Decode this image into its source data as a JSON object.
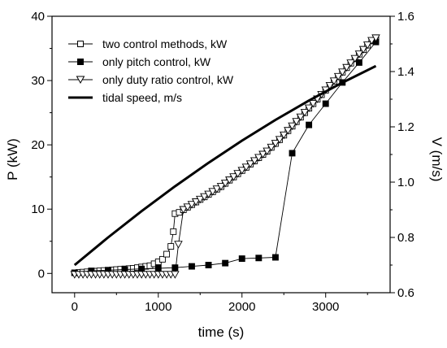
{
  "chart_data": {
    "type": "line",
    "xlabel": "time (s)",
    "ylabel_left": "P (kW)",
    "ylabel_right": "V (m/s)",
    "xlim": [
      -270,
      3770
    ],
    "ylim_left": [
      -3,
      40
    ],
    "ylim_right": [
      0.6,
      1.6
    ],
    "x_ticks": [
      0,
      1000,
      2000,
      3000
    ],
    "y_left_ticks": [
      0,
      10,
      20,
      30,
      40
    ],
    "y_right_ticks": [
      0.6,
      0.8,
      1.0,
      1.2,
      1.4,
      1.6
    ],
    "x_tick_labels": [
      "0",
      "1000",
      "2000",
      "3000"
    ],
    "y_left_tick_labels": [
      "0",
      "10",
      "20",
      "30",
      "40"
    ],
    "y_right_tick_labels": [
      "0.6",
      "0.8",
      "1.0",
      "1.2",
      "1.4",
      "1.6"
    ],
    "legend_position": "top-left",
    "grid": false,
    "series": [
      {
        "name": "two control methods, kW",
        "axis": "left",
        "marker": "open-square",
        "color": "#000000",
        "x": [
          0,
          50,
          100,
          150,
          200,
          250,
          300,
          350,
          400,
          450,
          500,
          550,
          600,
          650,
          700,
          750,
          800,
          850,
          900,
          950,
          1000,
          1050,
          1100,
          1150,
          1180,
          1200,
          1250,
          1300,
          1350,
          1400,
          1450,
          1500,
          1550,
          1600,
          1650,
          1700,
          1750,
          1800,
          1850,
          1900,
          1950,
          2000,
          2050,
          2100,
          2150,
          2200,
          2250,
          2300,
          2350,
          2400,
          2450,
          2500,
          2550,
          2600,
          2650,
          2700,
          2750,
          2800,
          2850,
          2900,
          2950,
          3000,
          3050,
          3100,
          3150,
          3200,
          3250,
          3300,
          3350,
          3400,
          3450,
          3500,
          3550,
          3600
        ],
        "y": [
          0.1,
          0.15,
          0.2,
          0.25,
          0.3,
          0.35,
          0.4,
          0.45,
          0.5,
          0.55,
          0.6,
          0.65,
          0.7,
          0.75,
          0.8,
          0.9,
          1.0,
          1.1,
          1.2,
          1.5,
          1.8,
          2.2,
          3.0,
          4.2,
          6.5,
          9.3,
          9.5,
          9.9,
          10.3,
          10.7,
          11.1,
          11.5,
          11.9,
          12.3,
          12.7,
          13.1,
          13.5,
          14.0,
          14.5,
          15.0,
          15.5,
          16.0,
          16.5,
          17.0,
          17.5,
          18.0,
          18.5,
          19.0,
          19.6,
          20.2,
          20.8,
          21.5,
          22.2,
          22.9,
          23.6,
          24.3,
          25.0,
          25.7,
          26.4,
          27.1,
          27.8,
          28.5,
          29.2,
          29.9,
          30.6,
          31.3,
          32.0,
          32.7,
          33.4,
          34.1,
          34.8,
          35.5,
          36.2,
          36.4
        ]
      },
      {
        "name": "only pitch control, kW",
        "axis": "left",
        "marker": "filled-square",
        "color": "#000000",
        "x": [
          0,
          200,
          400,
          600,
          800,
          1000,
          1200,
          1400,
          1600,
          1800,
          2000,
          2200,
          2400,
          2600,
          2800,
          3000,
          3200,
          3400,
          3600
        ],
        "y": [
          0.1,
          0.4,
          0.5,
          0.6,
          0.7,
          0.8,
          0.9,
          1.1,
          1.3,
          1.6,
          2.3,
          2.4,
          2.5,
          18.7,
          23.1,
          26.4,
          29.7,
          32.8,
          36.0
        ]
      },
      {
        "name": "only duty ratio control, kW",
        "axis": "left",
        "marker": "open-triangle-down",
        "color": "#000000",
        "x": [
          0,
          50,
          100,
          150,
          200,
          250,
          300,
          350,
          400,
          450,
          500,
          550,
          600,
          650,
          700,
          750,
          800,
          850,
          900,
          950,
          1000,
          1050,
          1100,
          1150,
          1200,
          1240,
          1300,
          1350,
          1400,
          1450,
          1500,
          1550,
          1600,
          1650,
          1700,
          1750,
          1800,
          1850,
          1900,
          1950,
          2000,
          2050,
          2100,
          2150,
          2200,
          2250,
          2300,
          2350,
          2400,
          2450,
          2500,
          2550,
          2600,
          2650,
          2700,
          2750,
          2800,
          2850,
          2900,
          2950,
          3000,
          3050,
          3100,
          3150,
          3200,
          3250,
          3300,
          3350,
          3400,
          3450,
          3500,
          3550,
          3600
        ],
        "y": [
          -0.2,
          -0.2,
          -0.2,
          -0.2,
          -0.2,
          -0.2,
          -0.2,
          -0.2,
          -0.2,
          -0.2,
          -0.2,
          -0.2,
          -0.2,
          -0.2,
          -0.2,
          -0.2,
          -0.2,
          -0.2,
          -0.2,
          -0.2,
          -0.2,
          -0.2,
          -0.2,
          -0.2,
          -0.2,
          4.5,
          9.9,
          10.3,
          10.7,
          11.1,
          11.5,
          11.9,
          12.3,
          12.7,
          13.1,
          13.5,
          14.0,
          14.5,
          15.0,
          15.5,
          16.0,
          16.5,
          17.0,
          17.5,
          18.0,
          18.5,
          19.0,
          19.6,
          20.2,
          20.8,
          21.5,
          22.2,
          22.9,
          23.6,
          24.3,
          25.0,
          25.7,
          26.4,
          27.1,
          27.8,
          28.5,
          29.2,
          29.9,
          30.6,
          31.3,
          32.0,
          32.7,
          33.4,
          34.1,
          34.8,
          35.5,
          36.2,
          36.6
        ]
      },
      {
        "name": "tidal speed, m/s",
        "axis": "right",
        "marker": "none",
        "color": "#000000",
        "x": [
          0,
          400,
          800,
          1200,
          1600,
          2000,
          2400,
          2800,
          3200,
          3600
        ],
        "y": [
          0.7,
          0.8,
          0.895,
          0.985,
          1.07,
          1.15,
          1.225,
          1.295,
          1.36,
          1.42
        ]
      }
    ]
  }
}
